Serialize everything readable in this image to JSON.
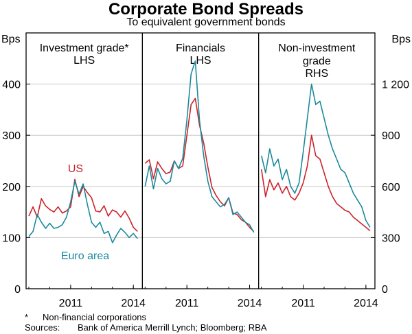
{
  "title": "Corporate Bond Spreads",
  "subtitle": "To equivalent government bonds",
  "footnotes": {
    "asterisk_mark": "*",
    "asterisk_text": "Non-financial corporations",
    "sources_label": "Sources:",
    "sources_text": "Bank of America Merrill Lynch; Bloomberg; RBA"
  },
  "colors": {
    "us": "#cc2229",
    "euro": "#1a8a9c",
    "axis": "#000000",
    "grid": "#c8c8c8"
  },
  "chart_data": {
    "type": "line",
    "left_axis": {
      "unit": "Bps",
      "range": [
        0,
        500
      ],
      "ticks": [
        0,
        100,
        200,
        300,
        400
      ]
    },
    "right_axis": {
      "unit": "Bps",
      "range": [
        0,
        1500
      ],
      "ticks": [
        0,
        300,
        600,
        900,
        1200
      ],
      "tick_labels": [
        "0",
        "300",
        "600",
        "900",
        "1 200"
      ]
    },
    "x_tick_labels": [
      "2011",
      "2014"
    ],
    "x_ticks": [
      2011,
      2014
    ],
    "grid": true,
    "series_labels": {
      "us": "US",
      "euro": "Euro area"
    },
    "panels": [
      {
        "title": "Investment grade*",
        "axis_note": "LHS",
        "axis": "left",
        "x_range": [
          2009.0,
          2014.3
        ],
        "series": [
          {
            "key": "us",
            "x": [
              2009.0,
              2009.2,
              2009.4,
              2009.6,
              2009.8,
              2010.0,
              2010.2,
              2010.4,
              2010.6,
              2010.8,
              2011.0,
              2011.2,
              2011.4,
              2011.6,
              2011.8,
              2012.0,
              2012.2,
              2012.4,
              2012.6,
              2012.8,
              2013.0,
              2013.2,
              2013.4,
              2013.6,
              2013.8,
              2014.0,
              2014.2
            ],
            "y": [
              142,
              160,
              140,
              176,
              162,
              155,
              150,
              160,
              148,
              152,
              160,
              214,
              180,
              200,
              188,
              178,
              152,
              150,
              162,
              142,
              154,
              150,
              140,
              152,
              138,
              120,
              112
            ]
          },
          {
            "key": "euro",
            "x": [
              2009.0,
              2009.2,
              2009.4,
              2009.6,
              2009.8,
              2010.0,
              2010.2,
              2010.4,
              2010.6,
              2010.8,
              2011.0,
              2011.2,
              2011.4,
              2011.6,
              2011.8,
              2012.0,
              2012.2,
              2012.4,
              2012.6,
              2012.8,
              2013.0,
              2013.2,
              2013.4,
              2013.6,
              2013.8,
              2014.0,
              2014.2
            ],
            "y": [
              102,
              112,
              145,
              130,
              118,
              128,
              118,
              120,
              125,
              140,
              170,
              210,
              185,
              205,
              165,
              130,
              120,
              130,
              108,
              112,
              90,
              105,
              118,
              110,
              100,
              108,
              98
            ]
          }
        ]
      },
      {
        "title": "Financials",
        "axis_note": "LHS",
        "axis": "left",
        "x_range": [
          2009.0,
          2014.3
        ],
        "series": [
          {
            "key": "us",
            "x": [
              2009.0,
              2009.2,
              2009.4,
              2009.6,
              2009.8,
              2010.0,
              2010.2,
              2010.4,
              2010.6,
              2010.8,
              2011.0,
              2011.2,
              2011.4,
              2011.6,
              2011.8,
              2012.0,
              2012.2,
              2012.4,
              2012.6,
              2012.8,
              2013.0,
              2013.2,
              2013.4,
              2013.6,
              2013.8,
              2014.0,
              2014.2
            ],
            "y": [
              245,
              252,
              215,
              248,
              235,
              225,
              228,
              250,
              235,
              240,
              300,
              360,
              372,
              320,
              285,
              238,
              198,
              182,
              170,
              162,
              178,
              148,
              145,
              135,
              130,
              120,
              112
            ]
          },
          {
            "key": "euro",
            "x": [
              2009.0,
              2009.2,
              2009.4,
              2009.6,
              2009.8,
              2010.0,
              2010.2,
              2010.4,
              2010.6,
              2010.8,
              2011.0,
              2011.2,
              2011.4,
              2011.6,
              2011.8,
              2012.0,
              2012.2,
              2012.4,
              2012.6,
              2012.8,
              2013.0,
              2013.2,
              2013.4,
              2013.6,
              2013.8,
              2014.0,
              2014.2
            ],
            "y": [
              200,
              240,
              195,
              235,
              215,
              205,
              210,
              250,
              235,
              255,
              330,
              420,
              445,
              330,
              260,
              210,
              180,
              170,
              160,
              165,
              178,
              145,
              150,
              140,
              130,
              125,
              110
            ]
          }
        ]
      },
      {
        "title": "Non-investment grade",
        "axis_note": "RHS",
        "axis": "right",
        "x_range": [
          2009.0,
          2014.3
        ],
        "series": [
          {
            "key": "us",
            "x": [
              2009.0,
              2009.2,
              2009.4,
              2009.6,
              2009.8,
              2010.0,
              2010.2,
              2010.4,
              2010.6,
              2010.8,
              2011.0,
              2011.2,
              2011.4,
              2011.6,
              2011.8,
              2012.0,
              2012.2,
              2012.4,
              2012.6,
              2012.8,
              2013.0,
              2013.2,
              2013.4,
              2013.6,
              2013.8,
              2014.0,
              2014.2
            ],
            "y": [
              700,
              540,
              640,
              580,
              620,
              560,
              600,
              540,
              520,
              560,
              620,
              720,
              900,
              780,
              760,
              680,
              600,
              540,
              500,
              480,
              460,
              450,
              420,
              400,
              380,
              360,
              340
            ]
          },
          {
            "key": "euro",
            "x": [
              2009.0,
              2009.2,
              2009.4,
              2009.6,
              2009.8,
              2010.0,
              2010.2,
              2010.4,
              2010.6,
              2010.8,
              2011.0,
              2011.2,
              2011.4,
              2011.6,
              2011.8,
              2012.0,
              2012.2,
              2012.4,
              2012.6,
              2012.8,
              2013.0,
              2013.2,
              2013.4,
              2013.6,
              2013.8,
              2014.0,
              2014.2
            ],
            "y": [
              780,
              680,
              820,
              720,
              760,
              640,
              700,
              600,
              560,
              620,
              800,
              1000,
              1200,
              1080,
              1100,
              1000,
              900,
              820,
              760,
              700,
              680,
              620,
              560,
              520,
              480,
              400,
              360
            ]
          }
        ]
      }
    ]
  }
}
